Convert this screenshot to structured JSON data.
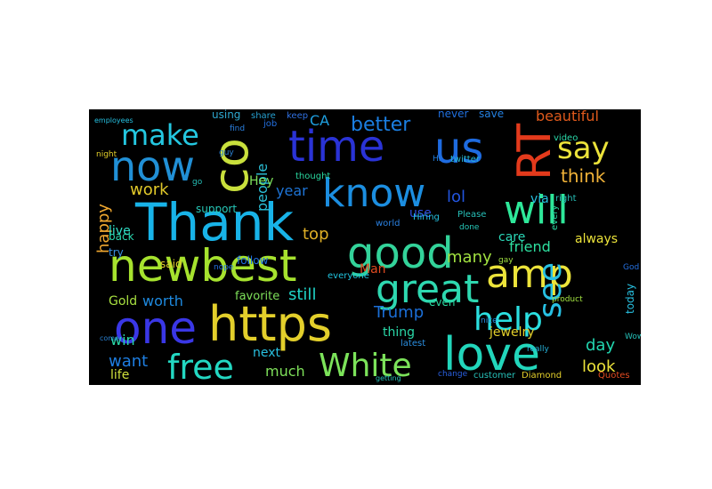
{
  "wordcloud": {
    "background": "#000000",
    "words": [
      {
        "text": "Thank",
        "color": "#18b3e8"
      },
      {
        "text": "newbest",
        "color": "#a6e22e"
      },
      {
        "text": "https",
        "color": "#e3cf2b"
      },
      {
        "text": "one",
        "color": "#3a37e6"
      },
      {
        "text": "love",
        "color": "#22d6bb"
      },
      {
        "text": "good",
        "color": "#33d39a"
      },
      {
        "text": "will",
        "color": "#2ee89a"
      },
      {
        "text": "know",
        "color": "#1c8ee0"
      },
      {
        "text": "time",
        "color": "#2a33d6"
      },
      {
        "text": "us",
        "color": "#1e6be0"
      },
      {
        "text": "now",
        "color": "#2190d6"
      },
      {
        "text": "RT",
        "color": "#e33a1c"
      },
      {
        "text": "co",
        "color": "#c9e03c"
      },
      {
        "text": "great",
        "color": "#2ed8b0"
      },
      {
        "text": "amp",
        "color": "#ece33a"
      },
      {
        "text": "White",
        "color": "#7ce35a"
      },
      {
        "text": "free",
        "color": "#23d8c2"
      },
      {
        "text": "help",
        "color": "#2bdfe0"
      },
      {
        "text": "see",
        "color": "#27c0e3"
      },
      {
        "text": "say",
        "color": "#ece33a"
      },
      {
        "text": "make",
        "color": "#24c7e0"
      },
      {
        "text": "people",
        "color": "#2bbfd6"
      },
      {
        "text": "think",
        "color": "#f0b238"
      },
      {
        "text": "better",
        "color": "#1b7ee0"
      },
      {
        "text": "beautiful",
        "color": "#e05a1c"
      },
      {
        "text": "Trump",
        "color": "#1b6ed6"
      },
      {
        "text": "work",
        "color": "#e0c82a"
      },
      {
        "text": "happy",
        "color": "#f0a830"
      },
      {
        "text": "many",
        "color": "#a0e040"
      },
      {
        "text": "friend",
        "color": "#2ee0a0"
      },
      {
        "text": "lol",
        "color": "#2255e0"
      },
      {
        "text": "top",
        "color": "#e0b026"
      },
      {
        "text": "year",
        "color": "#1e74d6"
      },
      {
        "text": "Hey",
        "color": "#7ee05a"
      },
      {
        "text": "worth",
        "color": "#1e8ae0"
      },
      {
        "text": "still",
        "color": "#20d4c8"
      },
      {
        "text": "day",
        "color": "#22d6b0"
      },
      {
        "text": "look",
        "color": "#ece33a"
      },
      {
        "text": "want",
        "color": "#1e7ee0"
      },
      {
        "text": "much",
        "color": "#7ee05a"
      },
      {
        "text": "next",
        "color": "#28c0e0"
      },
      {
        "text": "win",
        "color": "#2ad8a8"
      },
      {
        "text": "life",
        "color": "#d0e03c"
      },
      {
        "text": "thing",
        "color": "#2ad8a8"
      },
      {
        "text": "jewelry",
        "color": "#e3cf2b"
      },
      {
        "text": "via",
        "color": "#26c0e0"
      },
      {
        "text": "care",
        "color": "#2ad8b8"
      },
      {
        "text": "Man",
        "color": "#e04a20"
      },
      {
        "text": "use",
        "color": "#3050e0"
      },
      {
        "text": "Gold",
        "color": "#a8e040"
      },
      {
        "text": "always",
        "color": "#ece33a"
      },
      {
        "text": "favorite",
        "color": "#7ee05a"
      },
      {
        "text": "live",
        "color": "#30e0c8"
      },
      {
        "text": "support",
        "color": "#26c8b8"
      },
      {
        "text": "said",
        "color": "#e3cf2b"
      },
      {
        "text": "follow",
        "color": "#1e6ee0"
      },
      {
        "text": "even",
        "color": "#2ad8a0"
      },
      {
        "text": "today",
        "color": "#28c0e0"
      },
      {
        "text": "CA",
        "color": "#1ea0e0"
      },
      {
        "text": "using",
        "color": "#2ea8d0"
      },
      {
        "text": "never",
        "color": "#2070e0"
      },
      {
        "text": "save",
        "color": "#2480e0"
      },
      {
        "text": "back",
        "color": "#2ad8b0"
      },
      {
        "text": "try",
        "color": "#3a8ee0"
      },
      {
        "text": "every",
        "color": "#2ad8a0"
      },
      {
        "text": "everyone",
        "color": "#20c4e0"
      },
      {
        "text": "thought",
        "color": "#2ad8a0"
      },
      {
        "text": "latest",
        "color": "#2a8ee0"
      },
      {
        "text": "customer",
        "color": "#26c0b8"
      },
      {
        "text": "Diamond",
        "color": "#e3cf2b"
      },
      {
        "text": "Please",
        "color": "#26c0b8"
      },
      {
        "text": "world",
        "color": "#2a80e0"
      },
      {
        "text": "Hiring",
        "color": "#26c0e0"
      },
      {
        "text": "twitter",
        "color": "#28b8d0"
      },
      {
        "text": "job",
        "color": "#2470e0"
      },
      {
        "text": "share",
        "color": "#26a0d0"
      },
      {
        "text": "keep",
        "color": "#3070e0"
      },
      {
        "text": "right",
        "color": "#26c0b8"
      },
      {
        "text": "video",
        "color": "#2ad8a8"
      },
      {
        "text": "done",
        "color": "#26c8b8"
      },
      {
        "text": "gay",
        "color": "#a0e040"
      },
      {
        "text": "change",
        "color": "#2a60e0"
      },
      {
        "text": "nice",
        "color": "#2a8ee0"
      },
      {
        "text": "really",
        "color": "#26b0d8"
      },
      {
        "text": "getting",
        "color": "#26c0b8"
      },
      {
        "text": "Quotes",
        "color": "#e04a20"
      },
      {
        "text": "product",
        "color": "#a0e040"
      },
      {
        "text": "nope",
        "color": "#2470e0"
      },
      {
        "text": "guy",
        "color": "#2a80d0"
      },
      {
        "text": "night",
        "color": "#e3cf2b"
      },
      {
        "text": "find",
        "color": "#2a80e0"
      },
      {
        "text": "go",
        "color": "#26c0b8"
      },
      {
        "text": "God",
        "color": "#2470e0"
      },
      {
        "text": "Wow",
        "color": "#26c0b8"
      },
      {
        "text": "come",
        "color": "#2a80d0"
      },
      {
        "text": "Hi",
        "color": "#2480e0"
      },
      {
        "text": "employees",
        "color": "#26c0e0"
      }
    ]
  }
}
